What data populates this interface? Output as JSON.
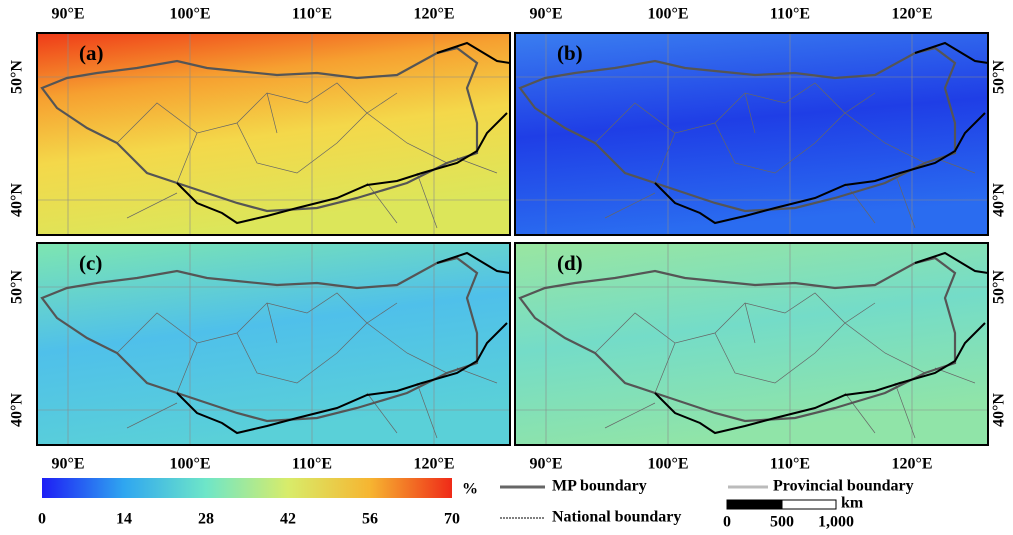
{
  "map": {
    "panels": [
      {
        "label": "(a)"
      },
      {
        "label": "(b)"
      },
      {
        "label": "(c)"
      },
      {
        "label": "(d)"
      }
    ],
    "lon_labels": [
      "90°E",
      "100°E",
      "110°E",
      "120°E"
    ],
    "lat_labels": [
      "50°N",
      "40°N"
    ],
    "colorbar": {
      "ticks": [
        0,
        14,
        28,
        42,
        56,
        70
      ],
      "range": [
        0,
        70
      ],
      "unit": "%",
      "colors": [
        "#1e1ef5",
        "#2fa6f0",
        "#6ee6c8",
        "#d8ec6a",
        "#f6b531",
        "#ef2a18"
      ]
    },
    "legend": {
      "mp_boundary": "MP boundary",
      "national_boundary": "National boundary",
      "provincial_boundary": "Provincial boundary"
    },
    "scale_bar": {
      "unit": "km",
      "labels": [
        "0",
        "500",
        "1,000"
      ]
    }
  }
}
